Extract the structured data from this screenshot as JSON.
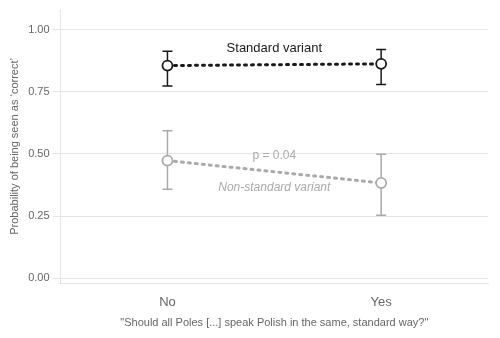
{
  "chart_data": {
    "type": "line",
    "categories": [
      "No",
      "Yes"
    ],
    "x_label": "\"Should all Poles [...] speak Polish in the same, standard way?\"",
    "y_label": "Probability of being seen as ‘correct’",
    "ylim": [
      -0.02,
      1.08
    ],
    "yticks": [
      {
        "value": 0.0,
        "label": "0.00"
      },
      0.25,
      {
        "value": 0.5,
        "label": "0.50"
      },
      0.75,
      {
        "value": 1.0,
        "label": "1.00"
      }
    ],
    "grid": true,
    "series": [
      {
        "name": "Standard variant",
        "color": "#1a1a1a",
        "marker": "circle",
        "line_style": "dotted",
        "values": [
          0.855,
          0.862
        ],
        "yerr_low": [
          0.082,
          0.083
        ],
        "yerr_high": [
          0.058,
          0.058
        ]
      },
      {
        "name": "Non-standard variant",
        "color": "#aaaaaa",
        "marker": "circle",
        "line_style": "dotted",
        "values": [
          0.473,
          0.383
        ],
        "yerr_low": [
          0.115,
          0.13
        ],
        "yerr_high": [
          0.12,
          0.115
        ]
      }
    ],
    "annotations": [
      "p = 0.04"
    ]
  }
}
